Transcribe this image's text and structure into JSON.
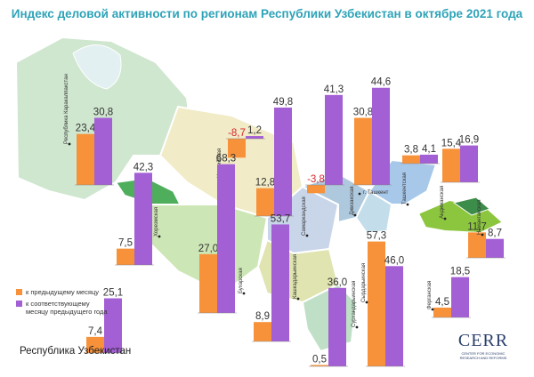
{
  "title": "Индекс деловой активности по регионам Республики Узбекистан в октябре 2021 года",
  "legend": {
    "prev_month": "к предыдущему месяцу",
    "prev_year": "к соответствующему месяцу предыдущего года"
  },
  "total_label": "Республика Узбекистан",
  "logo": {
    "brand": "CERR",
    "sub": "CENTER FOR ECONOMIC RESEARCH AND REFORMS"
  },
  "colors": {
    "prev_month": "#f7923a",
    "prev_year": "#a35fd4",
    "negative": "#d9242b",
    "title": "#2ea3b8"
  },
  "chart_data": {
    "type": "bar",
    "series_names": [
      "к предыдущему месяцу",
      "к соответствующему месяцу предыдущего года"
    ],
    "regions": [
      {
        "name": "Республика Каракалпакстан",
        "values": [
          23.4,
          30.8
        ],
        "labels": [
          "23,4",
          "30,8"
        ]
      },
      {
        "name": "Навоийская",
        "values": [
          -8.7,
          1.2
        ],
        "labels": [
          "-8,7",
          "1,2"
        ]
      },
      {
        "name": "Самаркандская",
        "values": [
          12.8,
          49.8
        ],
        "labels": [
          "12,8",
          "49,8"
        ]
      },
      {
        "name": "Джизакская",
        "values": [
          -3.8,
          41.3
        ],
        "labels": [
          "-3,8",
          "41,3"
        ]
      },
      {
        "name": "г. Ташкент",
        "values": [
          30.8,
          44.6
        ],
        "labels": [
          "30,8",
          "44,6"
        ]
      },
      {
        "name": "Ташкентская",
        "values": [
          3.8,
          4.1
        ],
        "labels": [
          "3,8",
          "4,1"
        ]
      },
      {
        "name": "Андижанская",
        "values": [
          15.4,
          16.9
        ],
        "labels": [
          "15,4",
          "16,9"
        ]
      },
      {
        "name": "Хорезмская",
        "values": [
          7.5,
          42.3
        ],
        "labels": [
          "7,5",
          "42,3"
        ]
      },
      {
        "name": "Бухарская",
        "values": [
          27.0,
          68.3
        ],
        "labels": [
          "27,0",
          "68,3"
        ]
      },
      {
        "name": "Кашкадарьинская",
        "values": [
          8.9,
          53.7
        ],
        "labels": [
          "8,9",
          "53,7"
        ]
      },
      {
        "name": "Сурхандарьинская",
        "values": [
          0.5,
          36.0
        ],
        "labels": [
          "0,5",
          "36,0"
        ]
      },
      {
        "name": "Сырдарьинская",
        "values": [
          57.3,
          46.0
        ],
        "labels": [
          "57,3",
          "46,0"
        ]
      },
      {
        "name": "Наманганская",
        "values": [
          11.7,
          8.7
        ],
        "labels": [
          "11,7",
          "8,7"
        ]
      },
      {
        "name": "Ферганская",
        "values": [
          4.5,
          18.5
        ],
        "labels": [
          "4,5",
          "18,5"
        ]
      },
      {
        "name": "Республика Узбекистан",
        "values": [
          7.4,
          25.1
        ],
        "labels": [
          "7,4",
          "25,1"
        ]
      }
    ]
  }
}
